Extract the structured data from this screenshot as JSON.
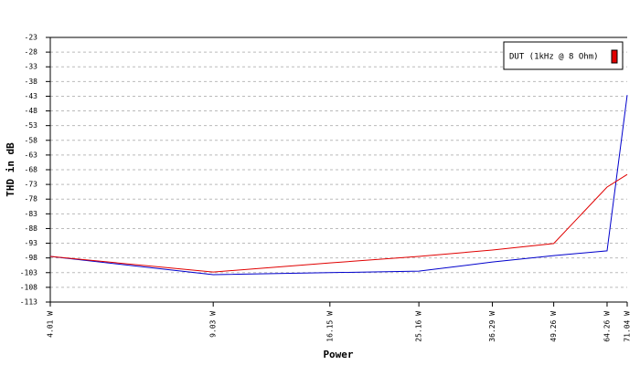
{
  "chart_data": {
    "type": "line",
    "x_label": "Power",
    "y_label": "THD in dB",
    "x": [
      4.01,
      9.03,
      16.15,
      25.16,
      36.29,
      49.26,
      64.26,
      71.04
    ],
    "xscale": "log",
    "xlim": [
      4.01,
      71.04
    ],
    "xticks": [
      {
        "value": 4.01,
        "label": "4.01 W"
      },
      {
        "value": 9.03,
        "label": "9.03 W"
      },
      {
        "value": 16.15,
        "label": "16.15 W"
      },
      {
        "value": 25.16,
        "label": "25.16 W"
      },
      {
        "value": 36.29,
        "label": "36.29 W"
      },
      {
        "value": 49.26,
        "label": "49.26 W"
      },
      {
        "value": 64.26,
        "label": "64.26 W"
      },
      {
        "value": 71.04,
        "label": "71.04 W"
      }
    ],
    "ylim": [
      -113,
      -23
    ],
    "yticks": [
      -23,
      -28,
      -33,
      -38,
      -43,
      -48,
      -53,
      -58,
      -63,
      -68,
      -73,
      -78,
      -83,
      -88,
      -93,
      -98,
      -103,
      -108,
      -113
    ],
    "grid": true,
    "legend": "top-right",
    "series": [
      {
        "color": "#0000cc",
        "values": [
          -97.5,
          -103.7,
          -103,
          -102.5,
          -99.4,
          -97.2,
          -95.6,
          -42.6
        ]
      },
      {
        "name": "DUT (1kHz @ 8 Ohm)",
        "color": "#e00000",
        "values": [
          -97.5,
          -102.8,
          -99.7,
          -97.5,
          -95.3,
          -93.1,
          -73.9,
          -69.6
        ]
      }
    ]
  }
}
